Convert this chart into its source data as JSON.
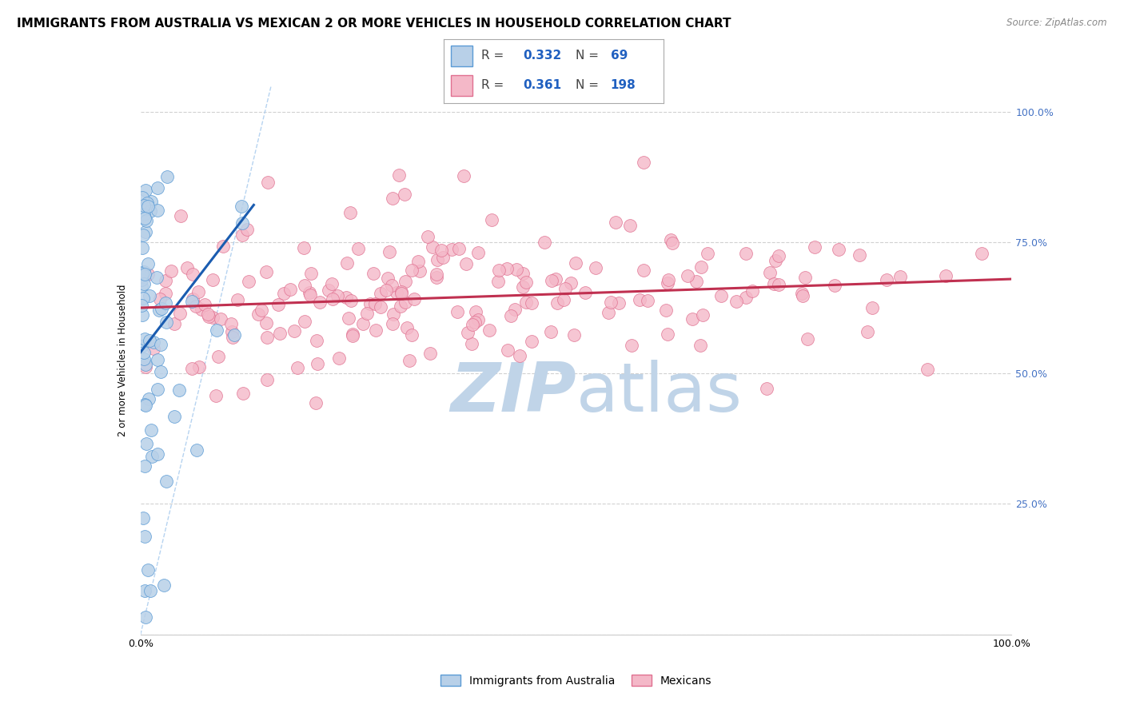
{
  "title": "IMMIGRANTS FROM AUSTRALIA VS MEXICAN 2 OR MORE VEHICLES IN HOUSEHOLD CORRELATION CHART",
  "source": "Source: ZipAtlas.com",
  "ylabel": "2 or more Vehicles in Household",
  "ytick_labels": [
    "",
    "25.0%",
    "50.0%",
    "75.0%",
    "100.0%"
  ],
  "ytick_values": [
    0.0,
    0.25,
    0.5,
    0.75,
    1.0
  ],
  "xtick_labels": [
    "0.0%",
    "",
    "",
    "",
    "",
    "",
    "",
    "",
    "",
    "",
    "100.0%"
  ],
  "xtick_values": [
    0.0,
    0.1,
    0.2,
    0.3,
    0.4,
    0.5,
    0.6,
    0.7,
    0.8,
    0.9,
    1.0
  ],
  "legend_r_australia": "0.332",
  "legend_n_australia": "69",
  "legend_r_mexican": "0.361",
  "legend_n_mexican": "198",
  "australia_fill": "#b8d0e8",
  "australia_edge": "#5b9bd5",
  "mexican_fill": "#f4b8c8",
  "mexican_edge": "#e07090",
  "trendline_australia_color": "#1a5cb0",
  "trendline_mexican_color": "#c03050",
  "diagonal_color": "#aaccee",
  "watermark_zip_color": "#c0d4e8",
  "watermark_atlas_color": "#c0d4e8",
  "right_tick_color": "#4472c4",
  "title_fontsize": 11,
  "axis_label_fontsize": 8.5,
  "tick_label_fontsize": 9,
  "background_color": "#ffffff",
  "grid_color": "#cccccc"
}
